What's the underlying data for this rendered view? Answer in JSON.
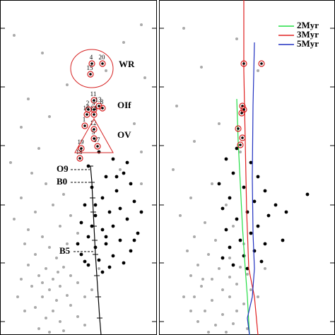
{
  "chart_data": [
    {
      "type": "scatter",
      "xlim": [
        0,
        222
      ],
      "ylim": [
        474,
        0
      ],
      "yticks": [
        40,
        123,
        206,
        290,
        372,
        455
      ],
      "series": [
        {
          "color": "#aaaaaa",
          "x": [
            20,
            200,
            60,
            175,
            95,
            40,
            205,
            150,
            30,
            70,
            190,
            55,
            15,
            200,
            45,
            65,
            30,
            90,
            170,
            200,
            50,
            75,
            20,
            100,
            40,
            85,
            60,
            110,
            35,
            70,
            95,
            50,
            80,
            115,
            40,
            65,
            90,
            55,
            75,
            100,
            45,
            70,
            85,
            110,
            60,
            80,
            95,
            50,
            75,
            100,
            65,
            85,
            110,
            55,
            90,
            120,
            30,
            25,
            130,
            70,
            140,
            35,
            120,
            60,
            82
          ],
          "y": [
            50,
            35,
            75,
            60,
            120,
            140,
            110,
            100,
            180,
            165,
            175,
            210,
            230,
            215,
            245,
            260,
            280,
            275,
            240,
            260,
            300,
            290,
            310,
            305,
            325,
            320,
            335,
            330,
            345,
            350,
            345,
            360,
            365,
            360,
            375,
            380,
            378,
            390,
            395,
            390,
            405,
            410,
            405,
            400,
            420,
            425,
            418,
            435,
            440,
            432,
            450,
            455,
            448,
            465,
            468,
            460,
            395,
            420,
            410,
            470,
            380,
            440,
            420,
            400,
            385
          ]
        },
        {
          "color": "#000000",
          "x": [
            140,
            160,
            125,
            175,
            150,
            185,
            130,
            165,
            145,
            190,
            120,
            170,
            155,
            135,
            180,
            115,
            160,
            145,
            195,
            125,
            170,
            150,
            135,
            185,
            115,
            160,
            140,
            175,
            125,
            155,
            145,
            110,
            200,
            165,
            130,
            180,
            150,
            120,
            190,
            135
          ],
          "y": [
            215,
            225,
            235,
            245,
            250,
            260,
            265,
            270,
            280,
            285,
            290,
            295,
            300,
            305,
            310,
            315,
            320,
            325,
            330,
            335,
            340,
            345,
            350,
            355,
            360,
            362,
            368,
            372,
            375,
            378,
            385,
            345,
            300,
            250,
            320,
            230,
            335,
            370,
            340,
            290
          ]
        }
      ],
      "track": {
        "color": "#000000",
        "x": [
          128,
          130,
          131,
          132,
          133,
          134,
          135,
          137,
          139,
          141,
          143
        ],
        "y": [
          235,
          258,
          280,
          300,
          320,
          340,
          360,
          390,
          420,
          450,
          474
        ]
      },
      "stars": {
        "color": "#d62020",
        "labels": [
          "4",
          "20",
          "15",
          "11",
          "13",
          "2",
          "3",
          "8",
          "16",
          "14",
          "1",
          "12",
          "5",
          "17",
          "19",
          "18"
        ],
        "x": [
          130,
          145,
          128,
          133,
          140,
          125,
          133,
          145,
          123,
          133,
          120,
          133,
          133,
          138,
          115,
          113
        ],
        "y": [
          90,
          90,
          105,
          142,
          150,
          155,
          155,
          153,
          162,
          162,
          178,
          183,
          196,
          207,
          210,
          224
        ]
      },
      "annotations": [
        "WR",
        "OIf",
        "OV",
        "O9",
        "B0",
        "B5"
      ]
    },
    {
      "type": "scatter",
      "xlim": [
        0,
        249
      ],
      "ylim": [
        474,
        0
      ],
      "yticks": [
        40,
        123,
        206,
        290,
        372,
        455
      ],
      "legend": "upper right",
      "series": [
        {
          "color": "#aaaaaa",
          "x": [
            35,
            110,
            60,
            140,
            25,
            85,
            50,
            115,
            20,
            75,
            45,
            95,
            30,
            65,
            105,
            50,
            80,
            120,
            40,
            70,
            100,
            55,
            85,
            115,
            45,
            75,
            100,
            125,
            60,
            90,
            110,
            50,
            75,
            100,
            120,
            65,
            90,
            110,
            55,
            80,
            105,
            125,
            70,
            95,
            35,
            130,
            45,
            150,
            140,
            62
          ],
          "y": [
            40,
            55,
            95,
            100,
            150,
            175,
            200,
            215,
            240,
            260,
            280,
            290,
            305,
            315,
            320,
            335,
            340,
            345,
            355,
            360,
            365,
            375,
            380,
            378,
            390,
            395,
            392,
            388,
            405,
            410,
            402,
            420,
            425,
            420,
            430,
            440,
            445,
            440,
            455,
            460,
            458,
            465,
            470,
            470,
            420,
            410,
            440,
            380,
            420,
            395
          ]
        },
        {
          "color": "#000000",
          "x": [
            110,
            95,
            130,
            105,
            140,
            85,
            120,
            150,
            100,
            135,
            90,
            125,
            155,
            110,
            140,
            95,
            130,
            115,
            150,
            100,
            135,
            120,
            90,
            145,
            105,
            125,
            165,
            180,
            210,
            175
          ],
          "y": [
            210,
            225,
            230,
            245,
            250,
            260,
            265,
            270,
            280,
            285,
            295,
            300,
            305,
            310,
            320,
            325,
            330,
            340,
            345,
            350,
            355,
            362,
            365,
            370,
            375,
            380,
            290,
            300,
            275,
            340
          ]
        }
      ],
      "isochrones": [
        {
          "name": "2Myr",
          "color": "#22dd44",
          "x": [
            110,
            112,
            115,
            118,
            122,
            125,
            128
          ],
          "y": [
            140,
            200,
            260,
            320,
            380,
            420,
            474
          ]
        },
        {
          "name": "3Myr",
          "color": "#e02020",
          "x": [
            120,
            120,
            122,
            124,
            127,
            135,
            140
          ],
          "y": [
            0,
            100,
            200,
            300,
            380,
            420,
            474
          ]
        },
        {
          "name": "5Myr",
          "color": "#2030c0",
          "x": [
            135,
            133,
            132,
            133,
            135,
            132,
            125,
            128
          ],
          "y": [
            60,
            150,
            250,
            330,
            380,
            420,
            450,
            474
          ]
        }
      ],
      "stars": {
        "color": "#d62020",
        "x": [
          120,
          145,
          118,
          120,
          117,
          112,
          118,
          115
        ],
        "y": [
          90,
          90,
          150,
          155,
          160,
          182,
          195,
          205
        ]
      }
    }
  ]
}
